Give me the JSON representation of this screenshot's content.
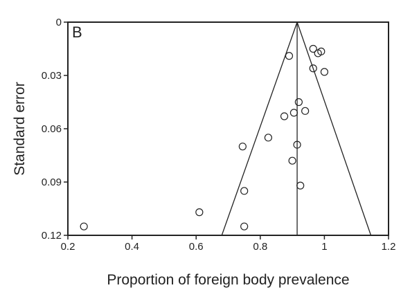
{
  "chart_data": {
    "type": "scatter",
    "panel_label": "B",
    "xlabel": "Proportion of foreign body prevalence",
    "ylabel": "Standard error",
    "xlim": [
      0.2,
      1.2
    ],
    "ylim": [
      0,
      0.12
    ],
    "y_inverted": true,
    "x_ticks": [
      "0.2",
      "0.4",
      "0.6",
      "0.8",
      "1",
      "1.2"
    ],
    "x_tick_values": [
      0.2,
      0.4,
      0.6,
      0.8,
      1.0,
      1.2
    ],
    "y_ticks": [
      "0",
      "0.03",
      "0.06",
      "0.09",
      "0.12"
    ],
    "y_tick_values": [
      0,
      0.03,
      0.06,
      0.09,
      0.12
    ],
    "pooled_estimate": 0.915,
    "funnel_limits": {
      "apex": [
        0.915,
        0.0
      ],
      "left_bottom": [
        0.68,
        0.12
      ],
      "right_bottom": [
        1.145,
        0.12
      ]
    },
    "points": [
      {
        "x": 0.25,
        "y": 0.115
      },
      {
        "x": 0.61,
        "y": 0.107
      },
      {
        "x": 0.75,
        "y": 0.115
      },
      {
        "x": 0.75,
        "y": 0.095
      },
      {
        "x": 0.745,
        "y": 0.07
      },
      {
        "x": 0.825,
        "y": 0.065
      },
      {
        "x": 0.875,
        "y": 0.053
      },
      {
        "x": 0.905,
        "y": 0.051
      },
      {
        "x": 0.92,
        "y": 0.045
      },
      {
        "x": 0.94,
        "y": 0.05
      },
      {
        "x": 0.915,
        "y": 0.069
      },
      {
        "x": 0.9,
        "y": 0.078
      },
      {
        "x": 0.925,
        "y": 0.092
      },
      {
        "x": 0.89,
        "y": 0.019
      },
      {
        "x": 0.965,
        "y": 0.015
      },
      {
        "x": 0.98,
        "y": 0.0175
      },
      {
        "x": 0.99,
        "y": 0.0165
      },
      {
        "x": 0.965,
        "y": 0.026
      },
      {
        "x": 1.0,
        "y": 0.028
      }
    ]
  }
}
